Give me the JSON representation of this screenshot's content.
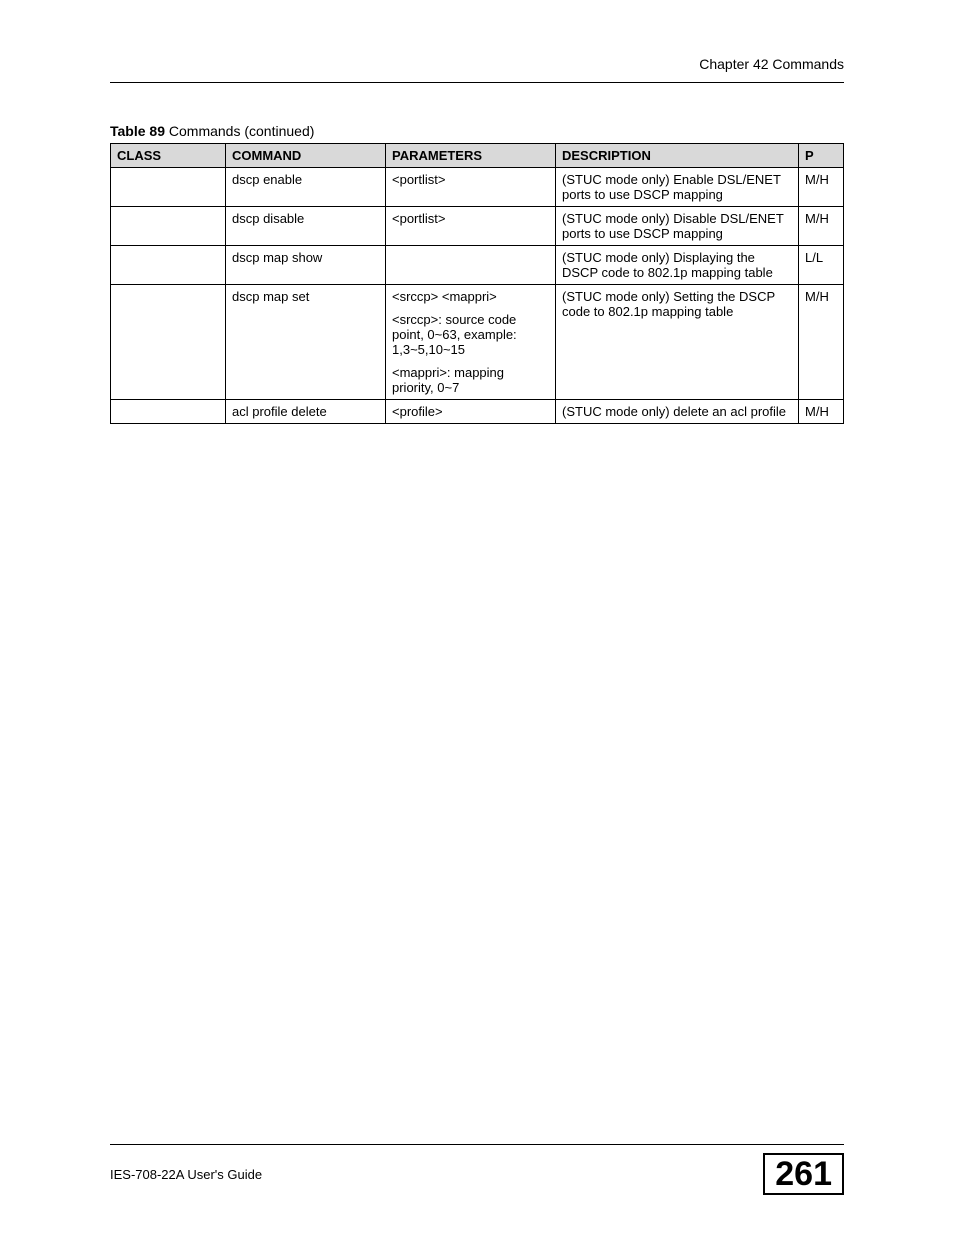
{
  "header": {
    "chapter": "Chapter 42 Commands"
  },
  "table": {
    "caption_bold": "Table 89",
    "caption_rest": "   Commands (continued)",
    "columns": {
      "class": "CLASS",
      "command": "COMMAND",
      "parameters": "PARAMETERS",
      "description": "DESCRIPTION",
      "p": "P"
    },
    "rows": [
      {
        "class": "",
        "command": "dscp enable",
        "parameters": [
          "<portlist>"
        ],
        "description": "(STUC mode only) Enable DSL/ENET ports to use DSCP mapping",
        "p": "M/H"
      },
      {
        "class": "",
        "command": "dscp disable",
        "parameters": [
          "<portlist>"
        ],
        "description": "(STUC mode only) Disable DSL/ENET ports to use DSCP mapping",
        "p": "M/H"
      },
      {
        "class": "",
        "command": "dscp map show",
        "parameters": [],
        "description": "(STUC mode only) Displaying the DSCP code to 802.1p mapping table",
        "p": "L/L"
      },
      {
        "class": "",
        "command": "dscp map set",
        "parameters": [
          "<srccp> <mappri>",
          "<srccp>: source code point, 0~63, example: 1,3~5,10~15",
          "<mappri>: mapping priority, 0~7"
        ],
        "description": "(STUC mode only) Setting the DSCP code to 802.1p mapping table",
        "p": "M/H"
      },
      {
        "class": "",
        "command": "acl profile delete",
        "parameters": [
          "<profile>"
        ],
        "description": "(STUC mode only) delete an acl profile",
        "p": "M/H"
      }
    ]
  },
  "footer": {
    "guide": "IES-708-22A User's Guide",
    "page": "261"
  }
}
